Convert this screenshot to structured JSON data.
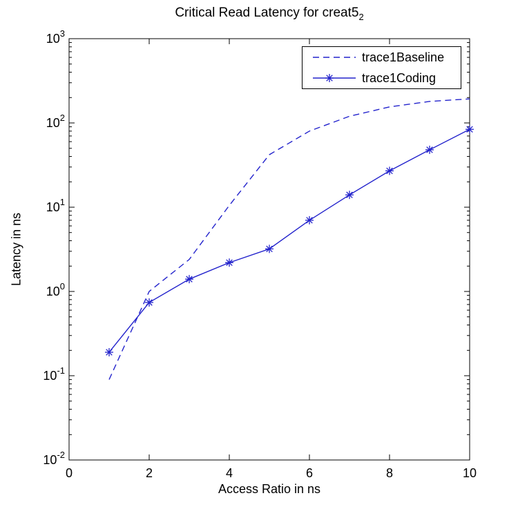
{
  "chart_data": {
    "type": "line",
    "title": "Critical Read Latency for creat5₂",
    "title_main": "Critical Read Latency for creat5",
    "title_subscript": "2",
    "xlabel": "Access Ratio in ns",
    "ylabel": "Latency in ns",
    "x": [
      1,
      2,
      3,
      4,
      5,
      6,
      7,
      8,
      9,
      10
    ],
    "series": [
      {
        "name": "trace1Baseline",
        "style": "dashed",
        "marker": "none",
        "color": "#2222cc",
        "values": [
          0.09,
          1.0,
          2.4,
          10.5,
          42,
          80,
          120,
          155,
          180,
          193
        ]
      },
      {
        "name": "trace1Coding",
        "style": "solid",
        "marker": "asterisk",
        "color": "#2222cc",
        "values": [
          0.19,
          0.74,
          1.4,
          2.2,
          3.2,
          7.0,
          14,
          27,
          48,
          84
        ]
      }
    ],
    "xlim": [
      0,
      10
    ],
    "xticks": [
      0,
      2,
      4,
      6,
      8,
      10
    ],
    "y_scale": "log",
    "ylog_exponent_range": [
      -2,
      3
    ],
    "ytick_exponents": [
      -2,
      -1,
      0,
      1,
      2,
      3
    ],
    "ytick_base": "10",
    "grid": false,
    "legend_position": "top-right",
    "axis_color": "#000000",
    "background_color": "#ffffff"
  }
}
